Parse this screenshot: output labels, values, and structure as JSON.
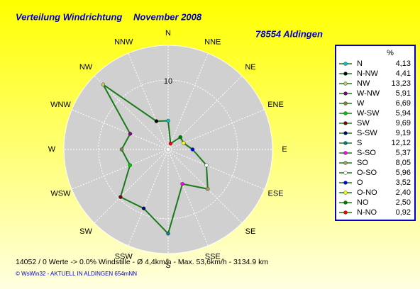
{
  "chart_data": {
    "type": "polar",
    "title": "Verteilung Windrichtung",
    "period": "November 2008",
    "station": "78554 Aldingen",
    "categories": [
      "N",
      "NNE",
      "NE",
      "ENE",
      "E",
      "ESE",
      "SE",
      "SSE",
      "S",
      "SSW",
      "SW",
      "WSW",
      "W",
      "WNW",
      "NW",
      "NNW"
    ],
    "rlim": [
      0,
      15
    ],
    "rticks": [
      10
    ],
    "line_color": "#1a7a1a",
    "legend": {
      "header": "%",
      "labels": [
        "N",
        "N-NW",
        "NW",
        "W-NW",
        "W",
        "W-SW",
        "SW",
        "S-SW",
        "S",
        "S-SO",
        "SO",
        "O-SO",
        "O",
        "O-NO",
        "NO",
        "N-NO"
      ],
      "values": [
        4.13,
        4.41,
        13.23,
        5.91,
        6.69,
        5.94,
        9.69,
        9.19,
        12.12,
        5.37,
        8.05,
        5.96,
        3.52,
        2.4,
        2.5,
        0.92
      ],
      "value_labels": [
        "4,13",
        "4,41",
        "13,23",
        "5,91",
        "6,69",
        "5,94",
        "9,69",
        "9,19",
        "12,12",
        "5,37",
        "8,05",
        "5,96",
        "3,52",
        "2,40",
        "2,50",
        "0,92"
      ],
      "colors": [
        "#00c8c8",
        "#000000",
        "#c8c864",
        "#800080",
        "#808040",
        "#00c800",
        "#800000",
        "#000080",
        "#008080",
        "#ff00ff",
        "#a0a060",
        "#ffffff",
        "#0000ff",
        "#ffff00",
        "#008000",
        "#ff0000"
      ]
    },
    "footer": "14052 / 0 Werte  -> 0.0% Windstille   -   Ø 4,4km/h   -   Max. 53,6km/h   -   3134.9 km",
    "credit": "© WsWin32  -  AKTUELL IN ALDINGEN 654mNN"
  }
}
